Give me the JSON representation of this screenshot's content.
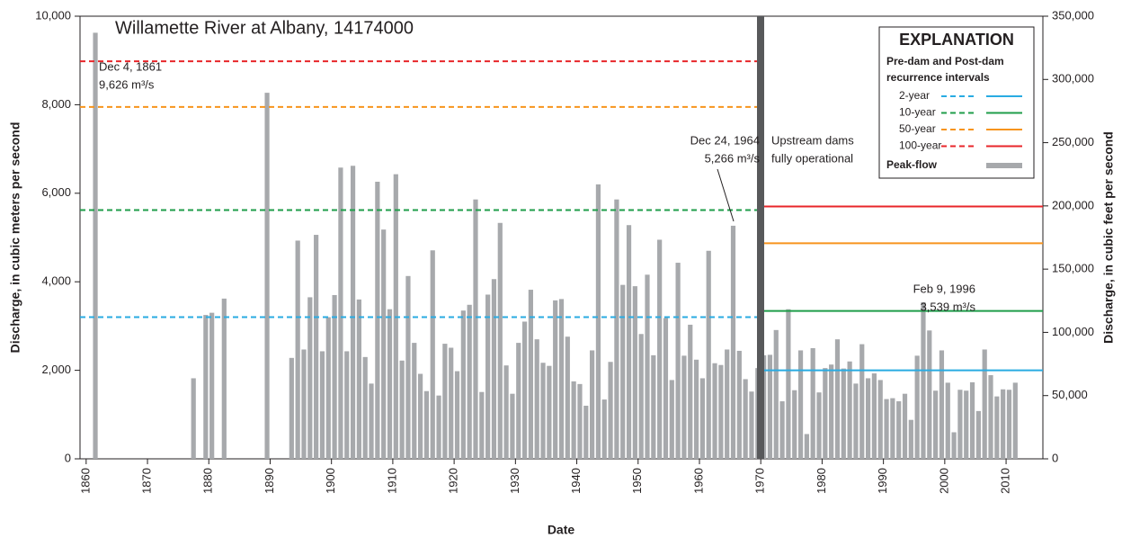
{
  "chart_data": {
    "type": "bar",
    "title": "Willamette River at Albany, 14174000",
    "x_label": "Date",
    "y_label": "Discharge, in cubic meters per second",
    "y2_label": "Discharge, in cubic feet per second",
    "xlim": [
      1859,
      2016
    ],
    "xticks": [
      1860,
      1870,
      1880,
      1890,
      1900,
      1910,
      1920,
      1930,
      1940,
      1950,
      1960,
      1970,
      1980,
      1990,
      2000,
      2010
    ],
    "ylim": [
      0,
      10000
    ],
    "yticks": [
      0,
      {
        "value": 2000,
        "label": "2,000"
      },
      {
        "value": 4000,
        "label": "4,000"
      },
      {
        "value": 6000,
        "label": "6,000"
      },
      {
        "value": 8000,
        "label": "8,000"
      },
      {
        "value": 10000,
        "label": "10,000"
      }
    ],
    "y2lim": [
      0,
      350000
    ],
    "y2ticks": [
      0,
      {
        "value": 50000,
        "label": "50,000"
      },
      {
        "value": 100000,
        "label": "100,000"
      },
      {
        "value": 150000,
        "label": "150,000"
      },
      {
        "value": 200000,
        "label": "200,000"
      },
      {
        "value": 250000,
        "label": "250,000"
      },
      {
        "value": 300000,
        "label": "300,000"
      },
      {
        "value": 350000,
        "label": "350,000"
      }
    ],
    "legend_position": "upper right",
    "legend_title": "EXPLANATION",
    "series": [
      {
        "name": "Peak-flow",
        "color": "#a7a9ac",
        "x": [
          1861,
          1877,
          1879,
          1880,
          1882,
          1889,
          1893,
          1894,
          1895,
          1896,
          1897,
          1898,
          1899,
          1900,
          1901,
          1902,
          1903,
          1904,
          1905,
          1906,
          1907,
          1908,
          1909,
          1910,
          1911,
          1912,
          1913,
          1914,
          1915,
          1916,
          1917,
          1918,
          1919,
          1920,
          1921,
          1922,
          1923,
          1924,
          1925,
          1926,
          1927,
          1928,
          1929,
          1930,
          1931,
          1932,
          1933,
          1934,
          1935,
          1936,
          1937,
          1938,
          1939,
          1940,
          1941,
          1942,
          1943,
          1944,
          1945,
          1946,
          1947,
          1948,
          1949,
          1950,
          1951,
          1952,
          1953,
          1954,
          1955,
          1956,
          1957,
          1958,
          1959,
          1960,
          1961,
          1962,
          1963,
          1964,
          1965,
          1966,
          1967,
          1968,
          1969,
          1970,
          1971,
          1972,
          1973,
          1974,
          1975,
          1976,
          1977,
          1978,
          1979,
          1980,
          1981,
          1982,
          1983,
          1984,
          1985,
          1986,
          1987,
          1988,
          1989,
          1990,
          1991,
          1992,
          1993,
          1994,
          1995,
          1996,
          1997,
          1998,
          1999,
          2000,
          2001,
          2002,
          2003,
          2004,
          2005,
          2006,
          2007,
          2008,
          2009,
          2010,
          2011
        ],
        "values": [
          9626,
          1820,
          3250,
          3300,
          3620,
          8270,
          2280,
          4930,
          2470,
          3650,
          5060,
          2430,
          3200,
          3700,
          6580,
          2430,
          6620,
          3600,
          2300,
          1700,
          6260,
          5180,
          3380,
          6430,
          2220,
          4130,
          2620,
          1920,
          1530,
          4710,
          1430,
          2600,
          2510,
          1980,
          3350,
          3480,
          5860,
          1510,
          3710,
          4060,
          5330,
          2110,
          1470,
          2620,
          3100,
          3820,
          2700,
          2170,
          2100,
          3580,
          3610,
          2760,
          1750,
          1690,
          1200,
          2450,
          6200,
          1340,
          2190,
          5860,
          3930,
          5280,
          3900,
          2820,
          4160,
          2340,
          4950,
          3180,
          1780,
          4430,
          2330,
          3030,
          2240,
          1820,
          4700,
          2160,
          2120,
          2470,
          5266,
          2440,
          1800,
          1520,
          2050,
          2340,
          2350,
          2910,
          1300,
          3380,
          1550,
          2450,
          560,
          2500,
          1500,
          2050,
          2130,
          2700,
          2040,
          2200,
          1700,
          2590,
          1820,
          1930,
          1780,
          1350,
          1370,
          1300,
          1470,
          880,
          2330,
          3539,
          2900,
          1540,
          2450,
          1720,
          600,
          1560,
          1540,
          1730,
          1080,
          2470,
          1890,
          1410,
          1570,
          1560,
          1720
        ]
      }
    ],
    "recurrence_intervals": {
      "title": [
        "Pre-dam and Post-dam",
        "recurrence intervals"
      ],
      "series": [
        {
          "name": "2-year",
          "color": "#29abe2",
          "pre_dam": 3200,
          "post_dam": 2000
        },
        {
          "name": "10-year",
          "color": "#1f9e4a",
          "pre_dam": 5620,
          "post_dam": 3340
        },
        {
          "name": "50-year",
          "color": "#f7941d",
          "pre_dam": 7950,
          "post_dam": 4870
        },
        {
          "name": "100-year",
          "color": "#e8262a",
          "pre_dam": 8980,
          "post_dam": 5700
        }
      ]
    },
    "annotations": [
      {
        "lines": [
          "Dec 4, 1861",
          "9,626 m³/s"
        ]
      },
      {
        "lines": [
          "Upstream dams",
          "fully operational"
        ]
      },
      {
        "lines": [
          "Dec 24, 1964",
          "5,266 m³/s"
        ]
      },
      {
        "lines": [
          "Feb 9, 1996",
          "3,539 m³/s"
        ]
      }
    ]
  }
}
